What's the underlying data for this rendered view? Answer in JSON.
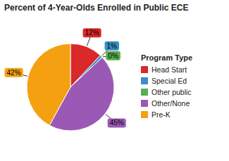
{
  "chart_data": {
    "type": "pie",
    "title": "Percent of 4-Year-Olds Enrolled in Public ECE",
    "categories": [
      "Head Start",
      "Special Ed",
      "Other public",
      "Other/None",
      "Pre-K"
    ],
    "values": [
      12,
      1,
      0,
      45,
      42
    ],
    "value_labels": [
      "12%",
      "1%",
      "0%",
      "45%",
      "42%"
    ],
    "colors": [
      "#d9292b",
      "#3a8fc4",
      "#5aad50",
      "#9b59b6",
      "#f5a011"
    ],
    "legend_title": "Program Type",
    "legend": "right",
    "data_labels": true
  }
}
